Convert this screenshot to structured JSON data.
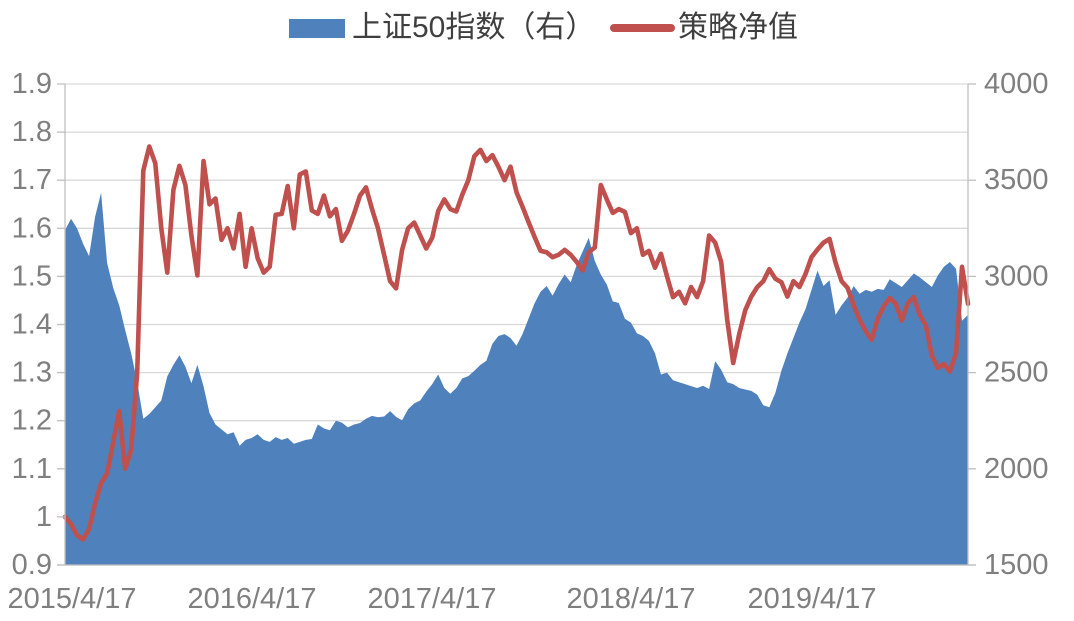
{
  "legend": {
    "items": [
      {
        "label": "上证50指数（右）",
        "series_type": "area",
        "color": "#4F81BD"
      },
      {
        "label": "策略净值",
        "series_type": "line",
        "color": "#C0504D"
      }
    ],
    "position": "top"
  },
  "chart_data": {
    "type": "combo",
    "title": "",
    "grid": true,
    "background": "#FFFFFF",
    "grid_color": "#D9D9D9",
    "axis_color": "#BFBFBF",
    "label_color": "#7F7F7F",
    "x": {
      "tick_labels": [
        "2015/4/17",
        "2016/4/17",
        "2017/4/17",
        "2018/4/17",
        "2019/4/17"
      ],
      "points": 151,
      "note": "151 evenly spaced samples from 2015/4/17 to early 2020"
    },
    "left_axis": {
      "min": 0.9,
      "max": 1.9,
      "ticks": [
        "0.9",
        "1",
        "1.1",
        "1.2",
        "1.3",
        "1.4",
        "1.5",
        "1.6",
        "1.7",
        "1.8",
        "1.9"
      ]
    },
    "right_axis": {
      "min": 1500,
      "max": 4000,
      "ticks": [
        "1500",
        "2000",
        "2500",
        "3000",
        "3500",
        "4000"
      ]
    },
    "series": [
      {
        "name": "上证50指数（右）",
        "type": "area",
        "axis": "right",
        "color": "#4F81BD",
        "values": [
          3240,
          3300,
          3250,
          3170,
          3105,
          3310,
          3435,
          3070,
          2940,
          2850,
          2720,
          2600,
          2450,
          2260,
          2285,
          2320,
          2355,
          2480,
          2540,
          2590,
          2530,
          2445,
          2540,
          2430,
          2290,
          2230,
          2205,
          2180,
          2190,
          2120,
          2150,
          2160,
          2180,
          2150,
          2140,
          2165,
          2150,
          2160,
          2130,
          2140,
          2150,
          2155,
          2230,
          2210,
          2200,
          2250,
          2240,
          2215,
          2230,
          2238,
          2260,
          2275,
          2268,
          2272,
          2300,
          2270,
          2252,
          2310,
          2340,
          2355,
          2400,
          2440,
          2490,
          2420,
          2390,
          2420,
          2470,
          2482,
          2510,
          2540,
          2562,
          2650,
          2690,
          2700,
          2680,
          2640,
          2700,
          2780,
          2860,
          2920,
          2950,
          2900,
          2960,
          3010,
          2970,
          3060,
          3130,
          3200,
          3080,
          3010,
          2958,
          2870,
          2862,
          2780,
          2760,
          2705,
          2690,
          2665,
          2600,
          2490,
          2500,
          2460,
          2450,
          2440,
          2430,
          2420,
          2432,
          2415,
          2560,
          2515,
          2450,
          2440,
          2420,
          2412,
          2405,
          2385,
          2330,
          2320,
          2395,
          2510,
          2600,
          2680,
          2760,
          2830,
          2930,
          3030,
          2950,
          2980,
          2800,
          2850,
          2890,
          2950,
          2910,
          2930,
          2920,
          2935,
          2930,
          2985,
          2965,
          2945,
          2980,
          3015,
          2995,
          2970,
          2945,
          3005,
          3050,
          3075,
          3040,
          2770,
          2800
        ]
      },
      {
        "name": "策略净值",
        "type": "line",
        "axis": "left",
        "color": "#C0504D",
        "values": [
          1.0,
          0.985,
          0.962,
          0.953,
          0.975,
          1.028,
          1.07,
          1.09,
          1.155,
          1.22,
          1.1,
          1.14,
          1.3,
          1.72,
          1.77,
          1.735,
          1.6,
          1.508,
          1.68,
          1.73,
          1.69,
          1.585,
          1.502,
          1.74,
          1.65,
          1.662,
          1.576,
          1.6,
          1.558,
          1.63,
          1.52,
          1.6,
          1.538,
          1.508,
          1.52,
          1.628,
          1.63,
          1.688,
          1.6,
          1.712,
          1.718,
          1.637,
          1.63,
          1.668,
          1.625,
          1.64,
          1.574,
          1.595,
          1.63,
          1.668,
          1.685,
          1.64,
          1.6,
          1.545,
          1.49,
          1.475,
          1.555,
          1.6,
          1.612,
          1.585,
          1.558,
          1.58,
          1.636,
          1.66,
          1.64,
          1.635,
          1.67,
          1.7,
          1.75,
          1.763,
          1.74,
          1.752,
          1.728,
          1.7,
          1.728,
          1.675,
          1.645,
          1.613,
          1.582,
          1.553,
          1.55,
          1.54,
          1.545,
          1.555,
          1.545,
          1.53,
          1.512,
          1.55,
          1.56,
          1.69,
          1.66,
          1.632,
          1.64,
          1.634,
          1.59,
          1.6,
          1.545,
          1.553,
          1.518,
          1.547,
          1.5,
          1.457,
          1.468,
          1.444,
          1.478,
          1.457,
          1.49,
          1.585,
          1.57,
          1.53,
          1.41,
          1.32,
          1.38,
          1.43,
          1.458,
          1.478,
          1.49,
          1.515,
          1.495,
          1.488,
          1.458,
          1.49,
          1.478,
          1.505,
          1.54,
          1.556,
          1.57,
          1.578,
          1.528,
          1.49,
          1.476,
          1.44,
          1.41,
          1.386,
          1.368,
          1.412,
          1.438,
          1.455,
          1.443,
          1.408,
          1.444,
          1.457,
          1.42,
          1.398,
          1.335,
          1.31,
          1.318,
          1.302,
          1.34,
          1.52,
          1.443
        ]
      }
    ]
  }
}
